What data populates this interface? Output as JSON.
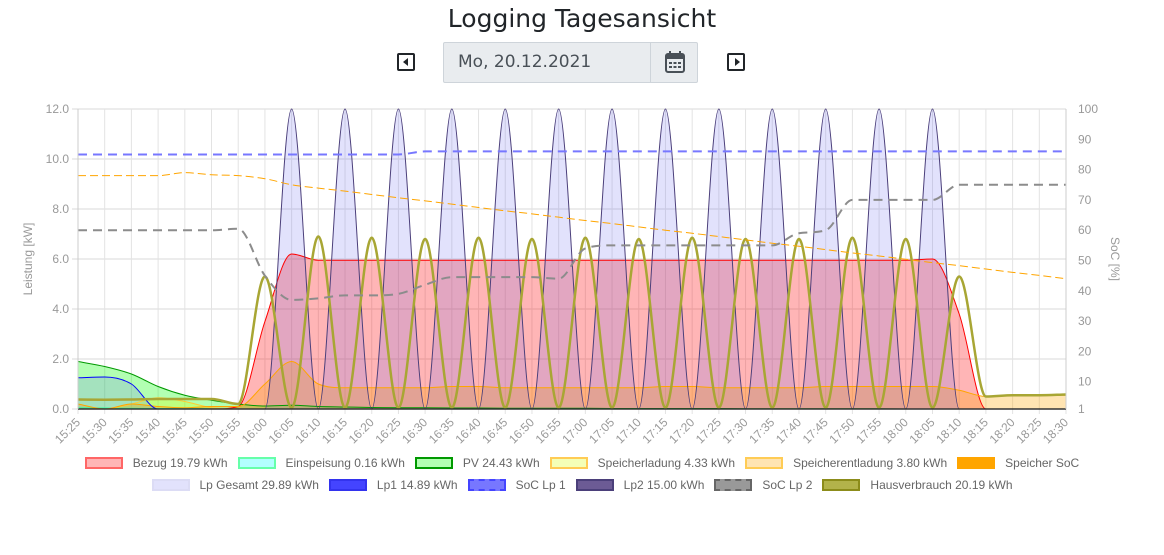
{
  "header": {
    "title": "Logging Tagesansicht",
    "date_value": "Mo, 20.12.2021",
    "prev_icon": "caret-left-square-icon",
    "next_icon": "caret-right-square-icon",
    "calendar_icon": "calendar-icon"
  },
  "chart_data": {
    "type": "line",
    "x": [
      "15:25",
      "15:30",
      "15:35",
      "15:40",
      "15:45",
      "15:50",
      "15:55",
      "16:00",
      "16:05",
      "16:10",
      "16:15",
      "16:20",
      "16:25",
      "16:30",
      "16:35",
      "16:40",
      "16:45",
      "16:50",
      "16:55",
      "17:00",
      "17:05",
      "17:10",
      "17:15",
      "17:20",
      "17:25",
      "17:30",
      "17:35",
      "17:40",
      "17:45",
      "17:50",
      "17:55",
      "18:00",
      "18:05",
      "18:10",
      "18:15",
      "18:20",
      "18:25",
      "18:30"
    ],
    "ylabel": "Leistung [kW]",
    "ylim": [
      0,
      12
    ],
    "yticks": [
      "0.0",
      "2.0",
      "4.0",
      "6.0",
      "8.0",
      "10.0",
      "12.0"
    ],
    "y2label": "SoC [%]",
    "y2lim": [
      1,
      100
    ],
    "y2ticks": [
      "1",
      "10",
      "20",
      "30",
      "40",
      "50",
      "60",
      "70",
      "80",
      "90",
      "100"
    ],
    "grid": true,
    "legend": "bottom",
    "series": [
      {
        "name": "Bezug",
        "label": "Bezug 19.79 kWh",
        "axis": "kw",
        "fill": true,
        "color": "#ff0000",
        "fillColor": "rgba(255,10,13,0.3)",
        "values": [
          0,
          0,
          0,
          0,
          0,
          0,
          0.1,
          3.5,
          6.2,
          5.95,
          5.95,
          5.95,
          5.95,
          5.95,
          5.95,
          5.95,
          5.95,
          5.95,
          5.95,
          5.95,
          5.95,
          5.95,
          5.95,
          5.95,
          5.95,
          5.95,
          5.95,
          5.95,
          5.95,
          5.95,
          5.95,
          5.95,
          6.0,
          3.8,
          0,
          0,
          0,
          0
        ]
      },
      {
        "name": "Einspeisung",
        "label": "Einspeisung 0.16 kWh",
        "axis": "kw",
        "fill": true,
        "color": "#33ff99",
        "fillColor": "rgba(0,255,255,0.3)",
        "values": [
          0.05,
          0.04,
          0.03,
          0.02,
          0.02,
          0.01,
          0,
          0,
          0,
          0,
          0,
          0,
          0,
          0,
          0,
          0,
          0,
          0,
          0,
          0,
          0,
          0,
          0,
          0,
          0,
          0,
          0,
          0,
          0,
          0,
          0,
          0,
          0,
          0,
          0,
          0,
          0,
          0
        ]
      },
      {
        "name": "PV",
        "label": "PV 24.43 kWh",
        "axis": "kw",
        "fill": true,
        "color": "#009900",
        "fillColor": "rgba(0,255,0,0.3)",
        "values": [
          1.9,
          1.7,
          1.4,
          0.9,
          0.55,
          0.35,
          0.2,
          0.12,
          0.15,
          0.1,
          0.08,
          0.06,
          0.05,
          0.05,
          0.04,
          0.04,
          0.03,
          0.03,
          0.03,
          0.03,
          0.02,
          0.02,
          0.02,
          0.02,
          0.02,
          0.01,
          0.01,
          0.01,
          0.01,
          0.01,
          0.01,
          0,
          0,
          0,
          0,
          0,
          0,
          0
        ]
      },
      {
        "name": "Speicherladung",
        "label": "Speicherladung 4.33 kWh",
        "axis": "kw",
        "fill": true,
        "color": "#ffcc33",
        "fillColor": "rgba(220,255,13,0.3)",
        "values": [
          0,
          0,
          0.2,
          0.45,
          0.3,
          0.05,
          0,
          0,
          0,
          0,
          0,
          0,
          0,
          0,
          0,
          0,
          0,
          0,
          0,
          0,
          0,
          0,
          0,
          0,
          0,
          0,
          0,
          0,
          0,
          0,
          0,
          0,
          0,
          0,
          0,
          0,
          0,
          0
        ]
      },
      {
        "name": "Speicherentladung",
        "label": "Speicherentladung 3.80 kWh",
        "axis": "kw",
        "fill": true,
        "color": "#ffa500",
        "fillColor": "rgba(255,165,0,0.3)",
        "values": [
          0.2,
          0,
          0.2,
          0.1,
          0.05,
          0.1,
          0.1,
          1.0,
          1.9,
          1.0,
          0.85,
          0.85,
          0.85,
          0.85,
          0.9,
          0.9,
          0.85,
          0.85,
          0.85,
          0.85,
          0.85,
          0.85,
          0.9,
          0.9,
          0.85,
          0.85,
          0.85,
          0.85,
          0.9,
          0.9,
          0.9,
          0.9,
          0.9,
          0.75,
          0.5,
          0.55,
          0.55,
          0.55
        ]
      },
      {
        "name": "Speicher SoC",
        "label": "Speicher SoC",
        "axis": "soc",
        "dash": true,
        "thin": true,
        "color": "#ffa500",
        "values": [
          78,
          78,
          78,
          78,
          79,
          78.3,
          78,
          77,
          75,
          73.9,
          72.9,
          71.8,
          70.7,
          69.7,
          68.6,
          67.5,
          66.4,
          65.4,
          64.3,
          63.2,
          62.2,
          61.1,
          60,
          59,
          57.9,
          56.8,
          55.7,
          54.7,
          53.6,
          52.5,
          51.5,
          50.4,
          49.3,
          48.3,
          47.2,
          46.1,
          45.1,
          44
        ]
      },
      {
        "name": "Lp Gesamt",
        "label": "Lp Gesamt 29.89 kWh",
        "axis": "kw",
        "fill": true,
        "noline": true,
        "color": "#d0d0f8",
        "fillColor": "rgba(110,110,240,0.2)",
        "values": [
          1.25,
          1.28,
          1.0,
          0,
          0,
          0,
          0,
          0,
          12,
          0,
          12,
          0,
          12,
          0,
          12,
          0,
          12,
          0,
          12,
          0,
          12,
          0,
          12,
          0,
          12,
          0,
          12,
          0,
          12,
          0,
          12,
          0,
          12,
          0,
          0,
          0,
          0,
          0
        ]
      },
      {
        "name": "Lp1",
        "label": "Lp1 14.89 kWh",
        "axis": "kw",
        "color": "#0000ff",
        "values": [
          1.25,
          1.28,
          1.0,
          0,
          0,
          0,
          0,
          0,
          0,
          0,
          0,
          0,
          0,
          0,
          0,
          0,
          0,
          0,
          0,
          0,
          0,
          0,
          0,
          0,
          0,
          0,
          0,
          0,
          0,
          0,
          0,
          0,
          0,
          0,
          0,
          0,
          0,
          0
        ]
      },
      {
        "name": "SoC Lp 1",
        "label": "SoC Lp 1",
        "axis": "soc",
        "dash": true,
        "color": "#7777ff",
        "values": [
          85,
          85,
          85,
          85,
          85,
          85,
          85,
          85,
          85,
          85,
          85,
          85,
          85,
          86,
          86,
          86,
          86,
          86,
          86,
          86,
          86,
          86,
          86,
          86,
          86,
          86,
          86,
          86,
          86,
          86,
          86,
          86,
          86,
          86,
          86,
          86,
          86,
          86
        ]
      },
      {
        "name": "Lp2",
        "label": "Lp2 15.00 kWh",
        "axis": "kw",
        "color": "#4b3f7a",
        "values": [
          0,
          0,
          0,
          0,
          0,
          0,
          0,
          0,
          12,
          0,
          12,
          0,
          12,
          0,
          12,
          0,
          12,
          0,
          12,
          0,
          12,
          0,
          12,
          0,
          12,
          0,
          12,
          0,
          12,
          0,
          12,
          0,
          12,
          0,
          0,
          0,
          0,
          0
        ]
      },
      {
        "name": "SoC Lp 2",
        "label": "SoC Lp 2",
        "axis": "soc",
        "dash": true,
        "color": "#8c8c8c",
        "values": [
          60,
          60,
          60,
          60,
          60,
          60,
          60.5,
          45,
          37,
          37.5,
          38.5,
          38.5,
          39,
          42,
          44.5,
          44.5,
          44.5,
          44.5,
          44,
          54,
          55,
          55,
          55,
          55,
          55,
          55,
          55,
          59,
          60,
          70,
          70,
          70,
          70,
          75,
          75,
          75,
          75,
          75
        ]
      },
      {
        "name": "Hausverbrauch",
        "label": "Hausverbrauch 20.19 kWh",
        "axis": "kw",
        "thick": true,
        "color": "#a8a634",
        "values": [
          0.38,
          0.37,
          0.38,
          0.4,
          0.4,
          0.4,
          0.2,
          5.3,
          0.05,
          6.9,
          0.05,
          6.85,
          0.05,
          6.8,
          0.05,
          6.85,
          0.05,
          6.8,
          0.05,
          6.85,
          0.05,
          6.8,
          0.05,
          6.85,
          0.05,
          6.8,
          0.05,
          6.8,
          0.05,
          6.85,
          0.05,
          6.8,
          0.05,
          5.3,
          0.5,
          0.55,
          0.55,
          0.58
        ]
      }
    ]
  },
  "legend": {
    "row1": [
      {
        "label": "Bezug 19.79 kWh",
        "bg": "rgba(255,10,13,0.3)",
        "border": "#ff6666"
      },
      {
        "label": "Einspeisung 0.16 kWh",
        "bg": "rgba(0,255,255,0.3)",
        "border": "#66ffaa"
      },
      {
        "label": "PV 24.43 kWh",
        "bg": "rgba(0,255,0,0.3)",
        "border": "#009900"
      },
      {
        "label": "Speicherladung 4.33 kWh",
        "bg": "rgba(220,255,13,0.3)",
        "border": "#ffcc55"
      },
      {
        "label": "Speicherentladung 3.80 kWh",
        "bg": "rgba(255,165,0,0.3)",
        "border": "#ffcc55"
      },
      {
        "label": "Speicher SoC",
        "bg": "#ffa500",
        "border": "#ffa500",
        "dash": true
      }
    ],
    "row2": [
      {
        "label": "Lp Gesamt 29.89 kWh",
        "bg": "rgba(110,110,240,0.2)",
        "border": "#dcdcf5"
      },
      {
        "label": "Lp1 14.89 kWh",
        "bg": "#4444ff",
        "border": "#3333ee"
      },
      {
        "label": "SoC Lp 1",
        "bg": "#7777ff",
        "border": "#4444ff",
        "dash": true
      },
      {
        "label": "Lp2 15.00 kWh",
        "bg": "#6c5b95",
        "border": "#4b3f7a"
      },
      {
        "label": "SoC Lp 2",
        "bg": "#999999",
        "border": "#666666",
        "dash": true
      },
      {
        "label": "Hausverbrauch 20.19 kWh",
        "bg": "#b3b34a",
        "border": "#8c8c1a"
      }
    ]
  }
}
